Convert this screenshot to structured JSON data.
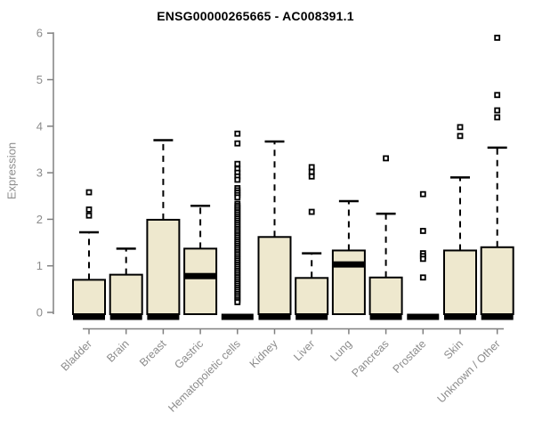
{
  "chart_data": {
    "type": "boxplot",
    "title": "ENSG00000265665 - AC008391.1",
    "ylabel": "Expression",
    "xlabel": "",
    "ylim": [
      0,
      6
    ],
    "yticks": [
      0,
      1,
      2,
      3,
      4,
      5,
      6
    ],
    "grid": false,
    "legend": "none",
    "categories": [
      "Bladder",
      "Brain",
      "Breast",
      "Gastric",
      "Hematopoietic cells",
      "Kidney",
      "Liver",
      "Lung",
      "Pancreas",
      "Prostate",
      "Skin",
      "Unknown / Other"
    ],
    "boxes": [
      {
        "category": "Bladder",
        "whisker_low": 0,
        "q1": 0,
        "median": 0.02,
        "q3": 0.7,
        "whisker_high": 1.72,
        "outliers": [
          2.58,
          2.21,
          2.08
        ]
      },
      {
        "category": "Brain",
        "whisker_low": 0,
        "q1": 0,
        "median": 0.02,
        "q3": 0.81,
        "whisker_high": 1.37,
        "outliers": []
      },
      {
        "category": "Breast",
        "whisker_low": 0,
        "q1": 0,
        "median": 0.02,
        "q3": 1.99,
        "whisker_high": 3.7,
        "outliers": []
      },
      {
        "category": "Gastric",
        "whisker_low": 0,
        "q1": 0,
        "median": 0.78,
        "q3": 1.37,
        "whisker_high": 2.29,
        "outliers": []
      },
      {
        "category": "Hematopoietic cells",
        "whisker_low": 0,
        "q1": 0,
        "median": 0,
        "q3": 0,
        "whisker_high": 0,
        "outliers": [
          3.84,
          3.63,
          3.19,
          3.08,
          3.0,
          2.92,
          2.85,
          2.67,
          2.62,
          2.57,
          2.52,
          2.47,
          2.33,
          2.285,
          2.24,
          2.195,
          2.15,
          2.105,
          2.06,
          2.015,
          1.97,
          1.925,
          1.88,
          1.835,
          1.79,
          1.745,
          1.7,
          1.655,
          1.61,
          1.565,
          1.52,
          1.475,
          1.43,
          1.385,
          1.34,
          1.295,
          1.25,
          1.205,
          1.16,
          1.115,
          1.07,
          1.025,
          0.98,
          0.935,
          0.89,
          0.845,
          0.8,
          0.755,
          0.71,
          0.665,
          0.62,
          0.575,
          0.53,
          0.485,
          0.44,
          0.395,
          0.35,
          0.305,
          0.26,
          0.22
        ]
      },
      {
        "category": "Kidney",
        "whisker_low": 0,
        "q1": 0,
        "median": 0.02,
        "q3": 1.62,
        "whisker_high": 3.67,
        "outliers": []
      },
      {
        "category": "Liver",
        "whisker_low": 0,
        "q1": 0,
        "median": 0.02,
        "q3": 0.74,
        "whisker_high": 1.27,
        "outliers": [
          3.12,
          3.02,
          2.92,
          2.16
        ]
      },
      {
        "category": "Lung",
        "whisker_low": 0,
        "q1": 0,
        "median": 1.03,
        "q3": 1.33,
        "whisker_high": 2.39,
        "outliers": []
      },
      {
        "category": "Pancreas",
        "whisker_low": 0,
        "q1": 0,
        "median": 0.02,
        "q3": 0.75,
        "whisker_high": 2.12,
        "outliers": [
          3.31
        ]
      },
      {
        "category": "Prostate",
        "whisker_low": 0,
        "q1": 0,
        "median": 0,
        "q3": 0,
        "whisker_high": 0,
        "outliers": [
          2.54,
          1.75,
          1.27,
          1.21,
          1.15,
          0.75
        ]
      },
      {
        "category": "Skin",
        "whisker_low": 0,
        "q1": 0,
        "median": 0.02,
        "q3": 1.33,
        "whisker_high": 2.9,
        "outliers": [
          3.98,
          3.79
        ]
      },
      {
        "category": "Unknown / Other",
        "whisker_low": 0,
        "q1": 0,
        "median": 0.02,
        "q3": 1.4,
        "whisker_high": 3.54,
        "outliers": [
          5.9,
          4.67,
          4.34,
          4.19
        ]
      }
    ],
    "colors": {
      "box_fill": "#EEE8CE",
      "box_border": "#000000",
      "median": "#000000",
      "whisker": "#000000",
      "outlier_stroke": "#000000",
      "outlier_fill": "#FFFFFF",
      "axis": "#808080",
      "tick_label": "#8C8C8C",
      "title": "#000000",
      "background": "#FFFFFF"
    }
  }
}
